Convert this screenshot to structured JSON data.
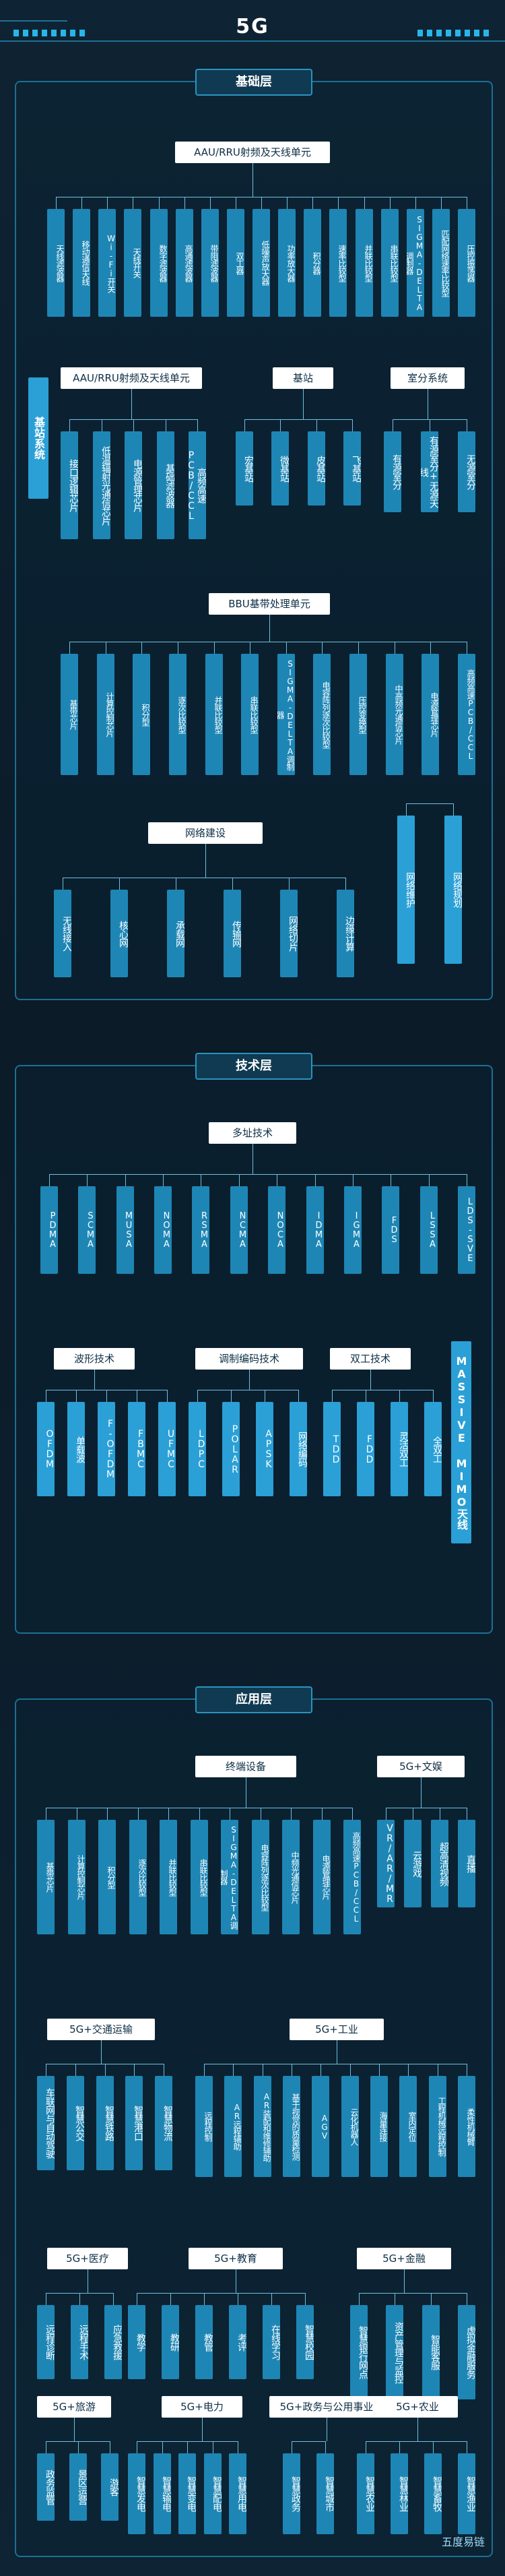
{
  "title": "5G",
  "sections": [
    {
      "name": "基础层",
      "side_label": "基站系统",
      "groups": [
        {
          "label": "AAU/RRU射频及天线单元",
          "items": [
            "天线滤波器",
            "移动通信天线",
            "Wi-Fi开关",
            "天线开关",
            "数字滤波器",
            "高通滤波器",
            "带阻滤波器",
            "双工器",
            "低噪声放大器",
            "功率放大器",
            "积分器",
            "速率比较型",
            "并联比较型",
            "串联比较型",
            "SIGMA-DELTA调制器",
            "匹配网络速率比较型",
            "压控振荡器"
          ]
        },
        {
          "label": "AAU/RRU射频及天线单元",
          "items": [
            "接口逻辑芯片",
            "低温辐射光通信芯片",
            "电源管理芯片",
            "基础滤波器",
            "高频高速PCB/CCL"
          ]
        },
        {
          "label": "基站",
          "items": [
            "宏基站",
            "微基站",
            "皮基站",
            "飞基站"
          ]
        },
        {
          "label": "室分系统",
          "items": [
            "有源室分",
            "有源室分+无源天线",
            "无源室分"
          ]
        },
        {
          "label": "BBU基带处理单元",
          "items": [
            "基带芯片",
            "计算控制芯片",
            "积分型",
            "逐次比较型",
            "并联比较型",
            "串联比较型",
            "SIGMA-DELTA调制器",
            "电容阵列逐次比较型",
            "压控变换型",
            "中高频光通信芯片",
            "电源管理芯片",
            "高频高速PCB/CCL"
          ]
        },
        {
          "label": "网络建设",
          "items": [
            "无线接入",
            "核心网",
            "承载网",
            "传输网",
            "网络切片",
            "边缘计算"
          ]
        },
        {
          "label": "",
          "items": [
            "网络维护",
            "网络规划"
          ]
        }
      ]
    },
    {
      "name": "技术层",
      "side_label": "MASSIVE MIMO天线",
      "groups": [
        {
          "label": "多址技术",
          "items": [
            "PDMA",
            "SCMA",
            "MUSA",
            "NOMA",
            "RSMA",
            "NCMA",
            "NOCA",
            "IDMA",
            "IGMA",
            "FDS",
            "LSSA",
            "LDS-SVE"
          ]
        },
        {
          "label": "波形技术",
          "items": [
            "OFDM",
            "单载波",
            "F-OFDM",
            "FBMC",
            "UFMC"
          ]
        },
        {
          "label": "调制编码技术",
          "items": [
            "LDPC",
            "POLAR",
            "APSK",
            "网络编码"
          ]
        },
        {
          "label": "双工技术",
          "items": [
            "TDD",
            "FDD",
            "灵活双工",
            "全双工"
          ]
        }
      ]
    },
    {
      "name": "应用层",
      "groups": [
        {
          "label": "终端设备",
          "items": [
            "基带芯片",
            "计算控制芯片",
            "积分型",
            "逐次比较型",
            "并联比较型",
            "串联比较型",
            "SIGMA-DELTA调制器",
            "电容阵列逐次比较型",
            "中频光通信芯片",
            "电源管理芯片",
            "高频高速PCB/CCL"
          ]
        },
        {
          "label": "5G+文娱",
          "items": [
            "VR/AR/MR",
            "云游戏",
            "超高清视频",
            "直播"
          ]
        },
        {
          "label": "5G+交通运输",
          "items": [
            "车联网与自动驾驶",
            "智慧公交",
            "智慧铁路",
            "智慧港口",
            "智慧物流"
          ]
        },
        {
          "label": "5G+工业",
          "items": [
            "远程控制",
            "AR远程辅助",
            "AR装配和维修辅助",
            "基于视觉的质量检测",
            "AGV",
            "云化机器人",
            "海量连接",
            "室内定位",
            "工程机械远程控制",
            "柔性机械臂"
          ]
        },
        {
          "label": "5G+医疗",
          "items": [
            "远程诊断",
            "远程手术",
            "应急救援"
          ]
        },
        {
          "label": "5G+教育",
          "items": [
            "教学",
            "教研",
            "教管",
            "考评",
            "在线学习",
            "智慧校园"
          ]
        },
        {
          "label": "5G+金融",
          "items": [
            "智慧银行网点",
            "资产管理与监控",
            "智能客服",
            "虚拟金融服务"
          ]
        },
        {
          "label": "5G+旅游",
          "items": [
            "政务监管",
            "景区运营",
            "游客"
          ]
        },
        {
          "label": "5G+电力",
          "items": [
            "智慧发电",
            "智慧输电",
            "智慧变电",
            "智慧配电",
            "智慧用电"
          ]
        },
        {
          "label": "5G+政务与公用事业",
          "items": [
            "智慧政务",
            "智慧城市"
          ]
        },
        {
          "label": "5G+农业",
          "items": [
            "智慧农业",
            "智慧林业",
            "智慧畜牧",
            "智慧渔业"
          ]
        }
      ]
    }
  ],
  "watermark": "五度易链"
}
